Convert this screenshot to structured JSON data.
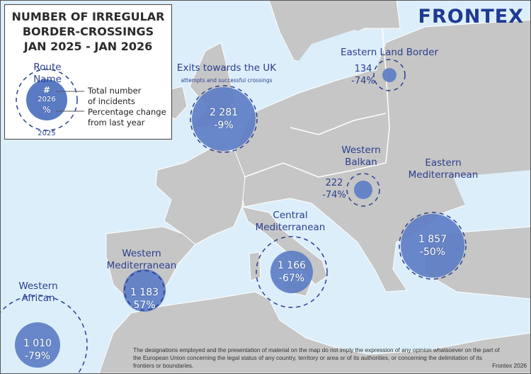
{
  "legend": {
    "title_lines": [
      "NUMBER OF IRREGULAR",
      "BORDER-CROSSINGS",
      "JAN 2025 - JAN 2026"
    ],
    "route_name": "Route Name",
    "hash": "#",
    "year_current": "2026",
    "percent": "%",
    "year_previous": "2025",
    "total_label_1": "Total number",
    "total_label_2": "of incidents",
    "change_label_1": "Percentage change",
    "change_label_2": "from last year"
  },
  "logo": "FRONTEX",
  "colors": {
    "sea": "#dceefa",
    "land": "#c6c6c6",
    "bubble": "#5a7bc4",
    "label": "#2a3f8f"
  },
  "routes": [
    {
      "id": "uk",
      "name_lines": [
        "Exits towards the UK"
      ],
      "subtitle": "attempts and successful crossings",
      "total": "2 281",
      "change": "-9%"
    },
    {
      "id": "eastern-land",
      "name_lines": [
        "Eastern Land Border"
      ],
      "total": "134",
      "change": "-74%"
    },
    {
      "id": "western-balkan",
      "name_lines": [
        "Western",
        "Balkan"
      ],
      "total": "222",
      "change": "-74%"
    },
    {
      "id": "eastern-med",
      "name_lines": [
        "Eastern",
        "Mediterranean"
      ],
      "total": "1 857",
      "change": "-50%"
    },
    {
      "id": "central-med",
      "name_lines": [
        "Central",
        "Mediterranean"
      ],
      "total": "1 166",
      "change": "-67%"
    },
    {
      "id": "western-med",
      "name_lines": [
        "Western",
        "Mediterranean"
      ],
      "total": "1 183",
      "change": "57%"
    },
    {
      "id": "western-african",
      "name_lines": [
        "Western",
        "African"
      ],
      "total": "1 010",
      "change": "-79%"
    }
  ],
  "disclaimer": "The designations employed and the presentation of material on the map do not imply the expression of any opinion whatsoever on the part of the European Union concerning the legal status of any country, territory or area or of its authorities, or concerning the delimitation of its frontiers or boundaries.",
  "credit": "Frontex 2026"
}
